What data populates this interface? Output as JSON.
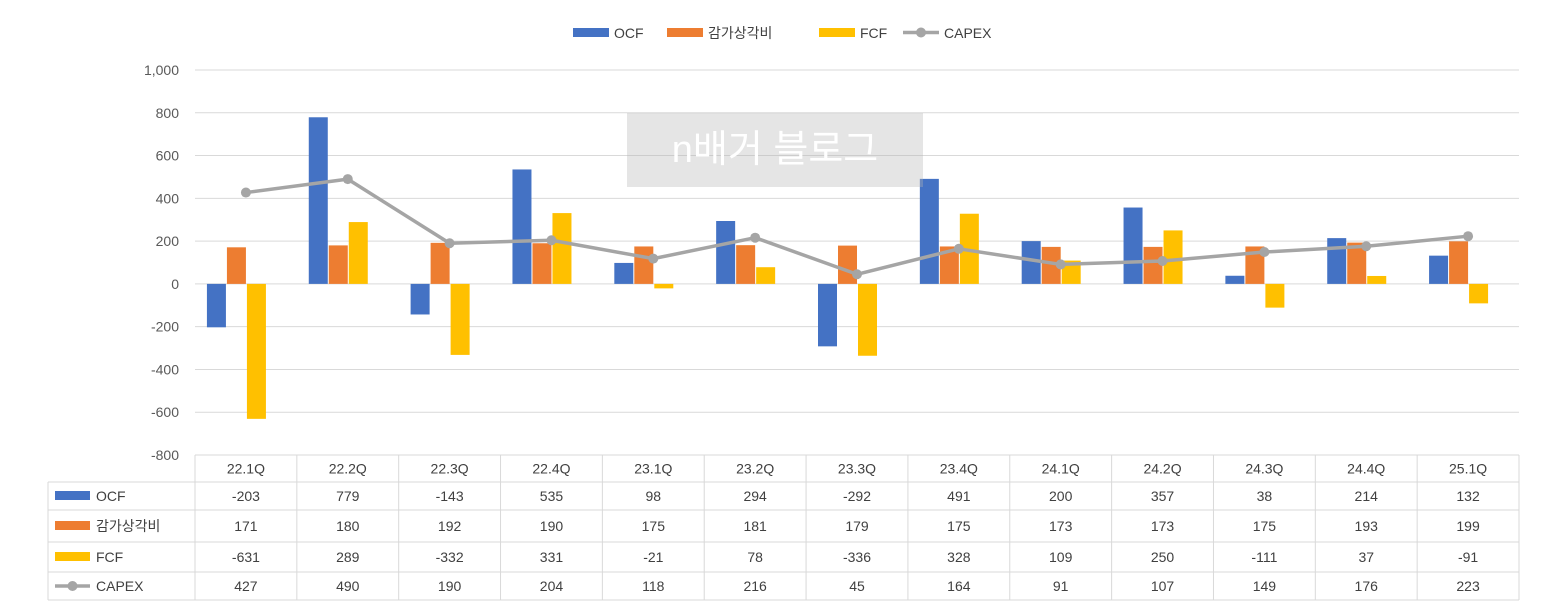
{
  "chart_data": {
    "type": "bar",
    "title": "",
    "categories": [
      "22.1Q",
      "22.2Q",
      "22.3Q",
      "22.4Q",
      "23.1Q",
      "23.2Q",
      "23.3Q",
      "23.4Q",
      "24.1Q",
      "24.2Q",
      "24.3Q",
      "24.4Q",
      "25.1Q"
    ],
    "series": [
      {
        "name": "OCF",
        "type": "bar",
        "color": "#4472C4",
        "values": [
          -203,
          779,
          -143,
          535,
          98,
          294,
          -292,
          491,
          200,
          357,
          38,
          214,
          132
        ]
      },
      {
        "name": "감가상각비",
        "type": "bar",
        "color": "#ED7D31",
        "values": [
          171,
          180,
          192,
          190,
          175,
          181,
          179,
          175,
          173,
          173,
          175,
          193,
          199
        ]
      },
      {
        "name": "FCF",
        "type": "bar",
        "color": "#FFC000",
        "values": [
          -631,
          289,
          -332,
          331,
          -21,
          78,
          -336,
          328,
          109,
          250,
          -111,
          37,
          -91
        ]
      },
      {
        "name": "CAPEX",
        "type": "line",
        "color": "#A5A5A5",
        "values": [
          427,
          490,
          190,
          204,
          118,
          216,
          45,
          164,
          91,
          107,
          149,
          176,
          223
        ]
      }
    ],
    "ylim": [
      -800,
      1000
    ],
    "yticks": [
      1000,
      800,
      600,
      400,
      200,
      0,
      -200,
      -400,
      -600,
      -800
    ],
    "ytick_labels": [
      "1,000",
      "800",
      "600",
      "400",
      "200",
      "0",
      "-200",
      "-400",
      "-600",
      "-800"
    ],
    "legend_position": "top-center",
    "grid": true,
    "data_table": true
  },
  "watermark": "n배거 블로그"
}
